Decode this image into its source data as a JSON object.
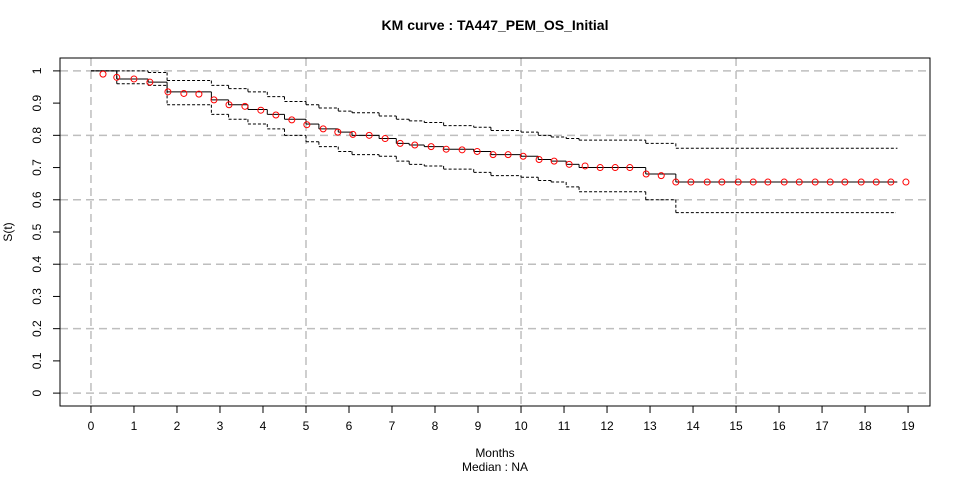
{
  "chart_data": {
    "type": "step",
    "title": "KM curve : TA447_PEM_OS_Initial",
    "xlabel": "Months",
    "subtitle": "Median : NA",
    "ylabel": "S(t)",
    "xlim": [
      -0.72,
      19.51
    ],
    "ylim": [
      -0.04,
      1.04
    ],
    "xticks": [
      0,
      1,
      2,
      3,
      4,
      5,
      6,
      7,
      8,
      9,
      10,
      11,
      12,
      13,
      14,
      15,
      16,
      17,
      18,
      19
    ],
    "yticks": [
      0,
      0.1,
      0.2,
      0.3,
      0.4,
      0.5,
      0.6,
      0.7,
      0.8,
      0.9,
      1
    ],
    "x_grid": [
      0,
      5,
      10,
      15
    ],
    "y_grid": [
      0,
      0.2,
      0.4,
      0.6,
      0.8,
      1
    ],
    "grid_color": "#bebebe",
    "series": [
      {
        "type": "step",
        "color": "#000000",
        "linestyle": "solid",
        "x": [
          0,
          0.6,
          1.33,
          1.77,
          2.8,
          3.2,
          3.65,
          4.1,
          4.5,
          5.0,
          5.3,
          5.75,
          6.07,
          6.7,
          7.1,
          7.4,
          7.75,
          8.2,
          8.9,
          9.3,
          10.0,
          10.4,
          10.7,
          11.05,
          11.35,
          12.9,
          13.6,
          18.75
        ],
        "values": [
          1,
          0.975,
          0.965,
          0.935,
          0.91,
          0.895,
          0.88,
          0.865,
          0.85,
          0.835,
          0.82,
          0.81,
          0.8,
          0.79,
          0.775,
          0.77,
          0.765,
          0.757,
          0.75,
          0.74,
          0.735,
          0.725,
          0.72,
          0.71,
          0.7,
          0.68,
          0.655,
          0.655
        ]
      },
      {
        "type": "step",
        "color": "#000000",
        "linestyle": "dashed",
        "x": [
          0,
          0.6,
          1.33,
          1.77,
          2.8,
          3.2,
          3.65,
          4.1,
          4.5,
          5.0,
          5.3,
          5.75,
          6.07,
          6.7,
          7.1,
          7.4,
          7.75,
          8.2,
          8.9,
          9.3,
          10.0,
          10.4,
          10.7,
          11.05,
          11.35,
          12.9,
          13.6,
          18.75
        ],
        "values": [
          1,
          1,
          0.995,
          0.97,
          0.955,
          0.945,
          0.935,
          0.92,
          0.905,
          0.895,
          0.885,
          0.875,
          0.87,
          0.86,
          0.85,
          0.845,
          0.84,
          0.83,
          0.825,
          0.815,
          0.81,
          0.8,
          0.795,
          0.79,
          0.785,
          0.775,
          0.76,
          0.76
        ]
      },
      {
        "type": "step",
        "color": "#000000",
        "linestyle": "dashed",
        "x": [
          0,
          0.6,
          1.33,
          1.77,
          2.8,
          3.2,
          3.65,
          4.1,
          4.5,
          5.0,
          5.3,
          5.75,
          6.07,
          6.7,
          7.1,
          7.4,
          7.75,
          8.2,
          8.9,
          9.3,
          10.0,
          10.4,
          10.7,
          11.05,
          11.35,
          12.9,
          13.6,
          18.7
        ],
        "values": [
          1,
          0.96,
          0.955,
          0.895,
          0.865,
          0.85,
          0.835,
          0.82,
          0.8,
          0.78,
          0.765,
          0.75,
          0.74,
          0.735,
          0.72,
          0.71,
          0.705,
          0.695,
          0.685,
          0.675,
          0.67,
          0.66,
          0.655,
          0.64,
          0.625,
          0.6,
          0.56,
          0.56
        ]
      },
      {
        "type": "scatter",
        "color": "#ff0000",
        "marker": "circle",
        "x": [
          0.28,
          0.6,
          1.0,
          1.37,
          1.79,
          2.16,
          2.51,
          2.86,
          3.21,
          3.58,
          3.95,
          4.3,
          4.67,
          5.02,
          5.4,
          5.74,
          6.09,
          6.47,
          6.84,
          7.19,
          7.53,
          7.91,
          8.26,
          8.63,
          8.98,
          9.35,
          9.7,
          10.05,
          10.42,
          10.77,
          11.12,
          11.49,
          11.84,
          12.19,
          12.53,
          12.91,
          13.26,
          13.6,
          13.95,
          14.33,
          14.67,
          15.05,
          15.4,
          15.74,
          16.12,
          16.47,
          16.84,
          17.19,
          17.53,
          17.91,
          18.26,
          18.6,
          18.95
        ],
        "values": [
          0.99,
          0.98,
          0.975,
          0.965,
          0.935,
          0.93,
          0.928,
          0.91,
          0.895,
          0.89,
          0.878,
          0.863,
          0.848,
          0.833,
          0.82,
          0.81,
          0.803,
          0.8,
          0.79,
          0.775,
          0.77,
          0.765,
          0.757,
          0.755,
          0.75,
          0.74,
          0.74,
          0.735,
          0.725,
          0.72,
          0.71,
          0.705,
          0.7,
          0.7,
          0.7,
          0.68,
          0.675,
          0.655,
          0.655,
          0.655,
          0.655,
          0.655,
          0.655,
          0.655,
          0.655,
          0.655,
          0.655,
          0.655,
          0.655,
          0.655,
          0.655,
          0.655,
          0.655
        ]
      }
    ]
  }
}
